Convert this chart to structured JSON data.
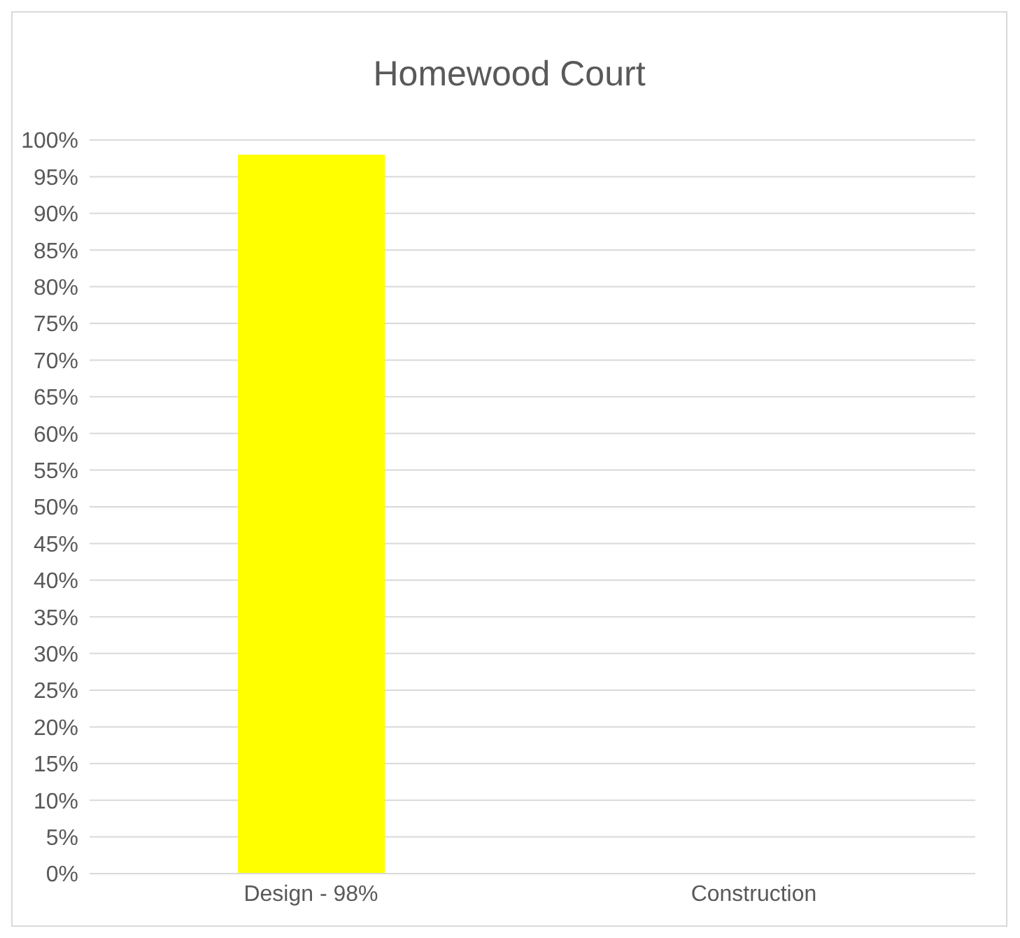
{
  "chart_data": {
    "type": "bar",
    "title": "Homewood Court",
    "categories": [
      "Design - 98%",
      "Construction"
    ],
    "values": [
      98,
      null
    ],
    "color": "#ffff00",
    "ylim": [
      0,
      100
    ],
    "yticks": [
      {
        "value": 0,
        "label": "0%"
      },
      {
        "value": 5,
        "label": "5%"
      },
      {
        "value": 10,
        "label": "10%"
      },
      {
        "value": 15,
        "label": "15%"
      },
      {
        "value": 20,
        "label": "20%"
      },
      {
        "value": 25,
        "label": "25%"
      },
      {
        "value": 30,
        "label": "30%"
      },
      {
        "value": 35,
        "label": "35%"
      },
      {
        "value": 40,
        "label": "40%"
      },
      {
        "value": 45,
        "label": "45%"
      },
      {
        "value": 50,
        "label": "50%"
      },
      {
        "value": 55,
        "label": "55%"
      },
      {
        "value": 60,
        "label": "60%"
      },
      {
        "value": 65,
        "label": "65%"
      },
      {
        "value": 70,
        "label": "70%"
      },
      {
        "value": 75,
        "label": "75%"
      },
      {
        "value": 80,
        "label": "80%"
      },
      {
        "value": 85,
        "label": "85%"
      },
      {
        "value": 90,
        "label": "90%"
      },
      {
        "value": 95,
        "label": "95%"
      },
      {
        "value": 100,
        "label": "100%"
      }
    ],
    "grid": "y"
  }
}
